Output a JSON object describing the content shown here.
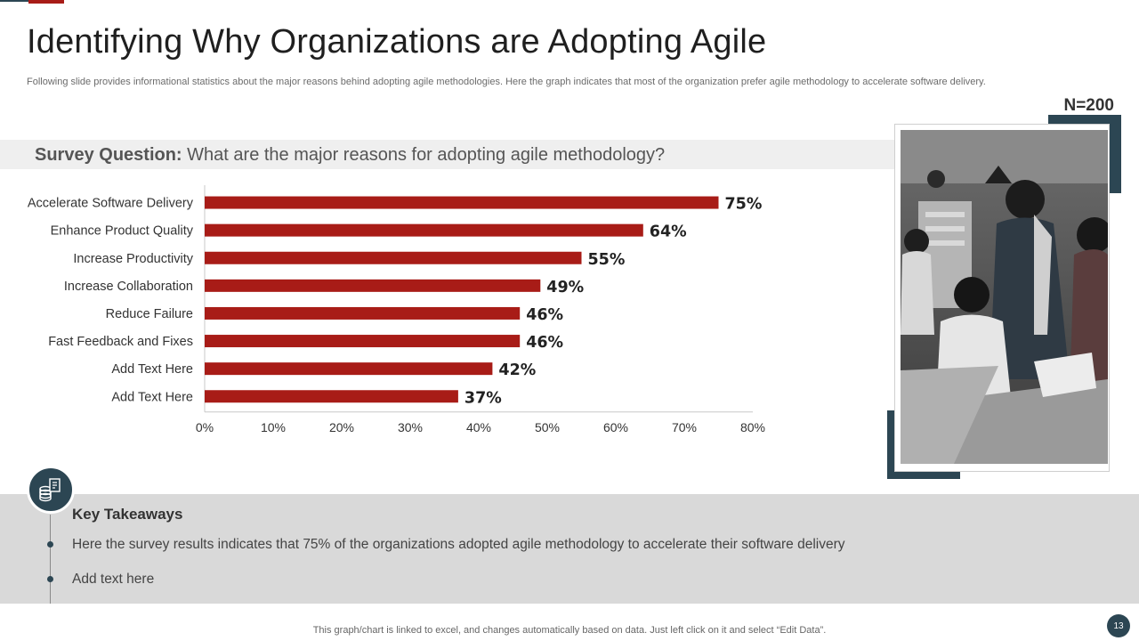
{
  "slide": {
    "title": "Identifying Why Organizations are Adopting Agile",
    "subtitle": "Following slide provides informational statistics about the major reasons behind adopting agile methodologies. Here the graph indicates that most of the organization prefer agile methodology to accelerate software delivery.",
    "sample_size": "N=200",
    "question_label": "Survey Question:",
    "question_text": "What are the major reasons for adopting agile methodology?",
    "takeaways_title": "Key Takeaways",
    "takeaways": [
      "Here the survey results indicates that 75% of the organizations adopted agile methodology to accelerate their software delivery",
      "Add text here"
    ],
    "footer_note": "This graph/chart is linked to excel,  and changes automatically based on data. Just left click on it and select “Edit Data”.",
    "page_number": "13"
  },
  "colors": {
    "bar": "#a81c17",
    "accent_dark": "#2c4653",
    "axis": "#c8c8c8"
  },
  "chart_data": {
    "type": "bar",
    "orientation": "horizontal",
    "categories": [
      "Accelerate Software Delivery",
      "Enhance Product Quality",
      "Increase Productivity",
      "Increase Collaboration",
      "Reduce Failure",
      "Fast Feedback and Fixes",
      "Add Text Here",
      "Add Text Here"
    ],
    "values": [
      75,
      64,
      55,
      49,
      46,
      46,
      42,
      37
    ],
    "value_labels": [
      "75%",
      "64%",
      "55%",
      "49%",
      "46%",
      "46%",
      "42%",
      "37%"
    ],
    "xlim": [
      0,
      80
    ],
    "xticks": [
      0,
      10,
      20,
      30,
      40,
      50,
      60,
      70,
      80
    ],
    "xtick_labels": [
      "0%",
      "10%",
      "20%",
      "30%",
      "40%",
      "50%",
      "60%",
      "70%",
      "80%"
    ],
    "title": "",
    "xlabel": "",
    "ylabel": "",
    "grid": false
  }
}
